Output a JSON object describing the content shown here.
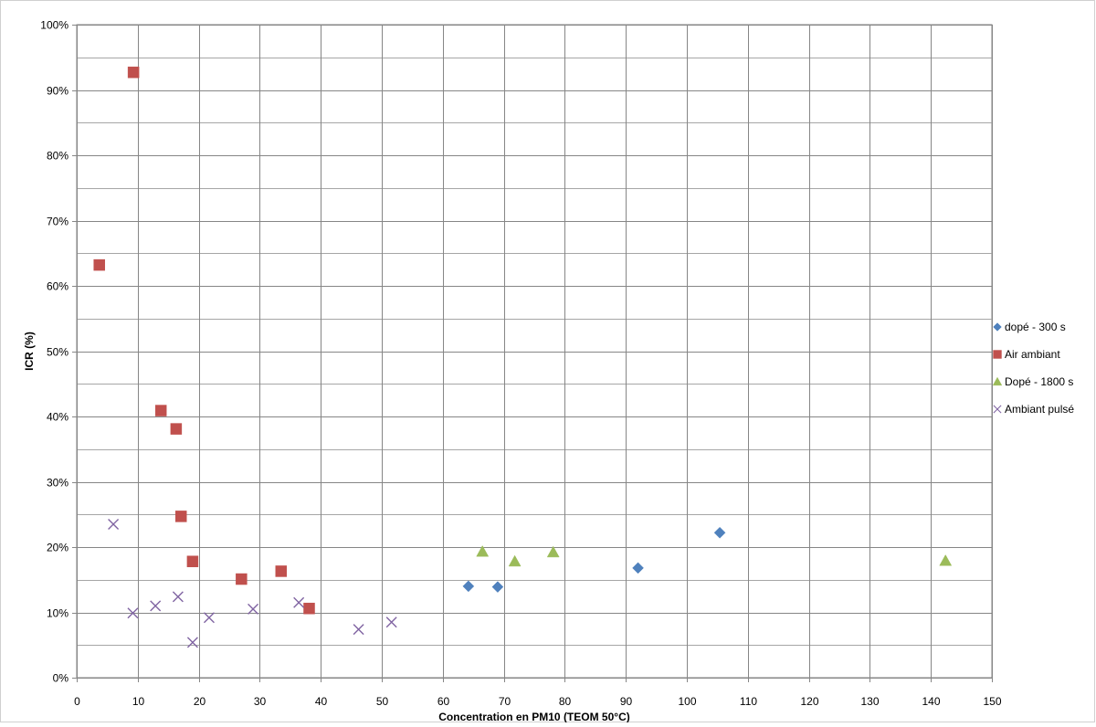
{
  "chart_data": {
    "type": "scatter",
    "title": "",
    "xlabel": "Concentration en PM10 (TEOM 50°C)",
    "ylabel": "ICR (%)",
    "xlim": [
      0,
      150
    ],
    "ylim": [
      0,
      100
    ],
    "x_ticks": [
      0,
      10,
      20,
      30,
      40,
      50,
      60,
      70,
      80,
      90,
      100,
      110,
      120,
      130,
      140,
      150
    ],
    "y_ticks": [
      0,
      10,
      20,
      30,
      40,
      50,
      60,
      70,
      80,
      90,
      100
    ],
    "y_tick_labels": [
      "0%",
      "10%",
      "20%",
      "30%",
      "40%",
      "50%",
      "60%",
      "70%",
      "80%",
      "90%",
      "100%"
    ],
    "grid": true,
    "legend_position": "right",
    "series": [
      {
        "name": "dopé - 300 s",
        "marker": "diamond",
        "color": "#4f81bd",
        "points": [
          [
            64.2,
            14.0
          ],
          [
            69.0,
            13.9
          ],
          [
            92.0,
            16.8
          ],
          [
            105.4,
            22.2
          ]
        ]
      },
      {
        "name": "Air ambiant",
        "marker": "square",
        "color": "#c0504d",
        "points": [
          [
            3.7,
            63.2
          ],
          [
            9.3,
            92.7
          ],
          [
            13.8,
            40.9
          ],
          [
            16.3,
            38.1
          ],
          [
            17.1,
            24.7
          ],
          [
            19.0,
            17.8
          ],
          [
            27.0,
            15.1
          ],
          [
            33.5,
            16.3
          ],
          [
            38.1,
            10.6
          ]
        ]
      },
      {
        "name": "Dopé - 1800 s",
        "marker": "triangle",
        "color": "#9bbb59",
        "points": [
          [
            66.5,
            19.3
          ],
          [
            71.8,
            17.8
          ],
          [
            78.1,
            19.2
          ],
          [
            142.4,
            17.9
          ]
        ]
      },
      {
        "name": "Ambiant pulsé",
        "marker": "x",
        "color": "#8064a2",
        "points": [
          [
            6.0,
            23.5
          ],
          [
            9.2,
            9.9
          ],
          [
            12.9,
            11.0
          ],
          [
            16.6,
            12.4
          ],
          [
            19.0,
            5.4
          ],
          [
            21.7,
            9.2
          ],
          [
            28.9,
            10.5
          ],
          [
            36.4,
            11.5
          ],
          [
            46.2,
            7.4
          ],
          [
            51.6,
            8.5
          ]
        ]
      }
    ]
  }
}
